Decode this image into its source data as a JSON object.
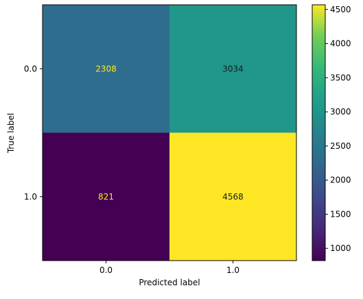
{
  "chart_data": {
    "type": "heatmap",
    "title": "",
    "xlabel": "Predicted label",
    "ylabel": "True label",
    "x_categories": [
      "0.0",
      "1.0"
    ],
    "y_categories": [
      "0.0",
      "1.0"
    ],
    "matrix": [
      [
        2308,
        3034
      ],
      [
        821,
        4568
      ]
    ],
    "colormap": "viridis",
    "colorbar": {
      "range": [
        821,
        4568
      ],
      "ticks": [
        1000,
        1500,
        2000,
        2500,
        3000,
        3500,
        4000,
        4500
      ]
    },
    "cell_text_colors": {
      "on_dark": "#fde725",
      "on_light": "#1a1a1a"
    }
  }
}
